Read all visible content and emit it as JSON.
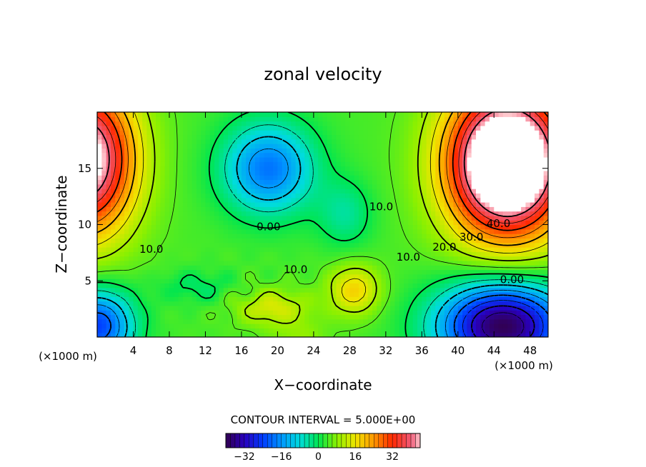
{
  "chart_data": {
    "type": "heatmap",
    "title": "zonal velocity",
    "xlabel": "X−coordinate",
    "ylabel": "Z−coordinate",
    "x_unit": "(×1000 m)",
    "x_unit_right": "(×1000 m)",
    "xlim": [
      0,
      50
    ],
    "ylim": [
      0,
      20
    ],
    "x_ticks": [
      4,
      8,
      12,
      16,
      20,
      24,
      28,
      32,
      36,
      40,
      44,
      48
    ],
    "y_ticks": [
      5,
      10,
      15
    ],
    "contour_interval_text": "CONTOUR INTERVAL = 5.000E+00",
    "colorbar": {
      "min": -40,
      "max": 40,
      "ticks": [
        "−32",
        "−16",
        "0",
        "16",
        "32"
      ],
      "tick_values": [
        -32,
        -16,
        0,
        16,
        32
      ]
    },
    "contour_labels": [
      {
        "text": "10.0",
        "x": 31.5,
        "z": 11.6
      },
      {
        "text": "0.00",
        "x": 19,
        "z": 9.8
      },
      {
        "text": "10.0",
        "x": 6,
        "z": 7.8
      },
      {
        "text": "10.0",
        "x": 22,
        "z": 6.0
      },
      {
        "text": "10.0",
        "x": 34.5,
        "z": 7.1
      },
      {
        "text": "20.0",
        "x": 38.5,
        "z": 8.0
      },
      {
        "text": "30.0",
        "x": 41.5,
        "z": 8.9
      },
      {
        "text": "40.0",
        "x": 44.5,
        "z": 10.1
      },
      {
        "text": "0.00",
        "x": 46,
        "z": 5.1
      }
    ],
    "field_features": [
      {
        "type": "jet-core",
        "x": 0,
        "z": 15.5,
        "value": 45
      },
      {
        "type": "jet-core",
        "x": 45,
        "z": 15.3,
        "value": 48
      },
      {
        "type": "minimum",
        "x": 19,
        "z": 15.2,
        "value": -14
      },
      {
        "type": "minimum",
        "x": 45,
        "z": 1.2,
        "value": -36
      },
      {
        "type": "minimum",
        "x": 0.8,
        "z": 1.5,
        "value": -22
      },
      {
        "type": "maximum",
        "x": 28.5,
        "z": 4.3,
        "value": 16
      },
      {
        "type": "maximum",
        "x": 19,
        "z": 2.6,
        "value": 12
      }
    ]
  }
}
